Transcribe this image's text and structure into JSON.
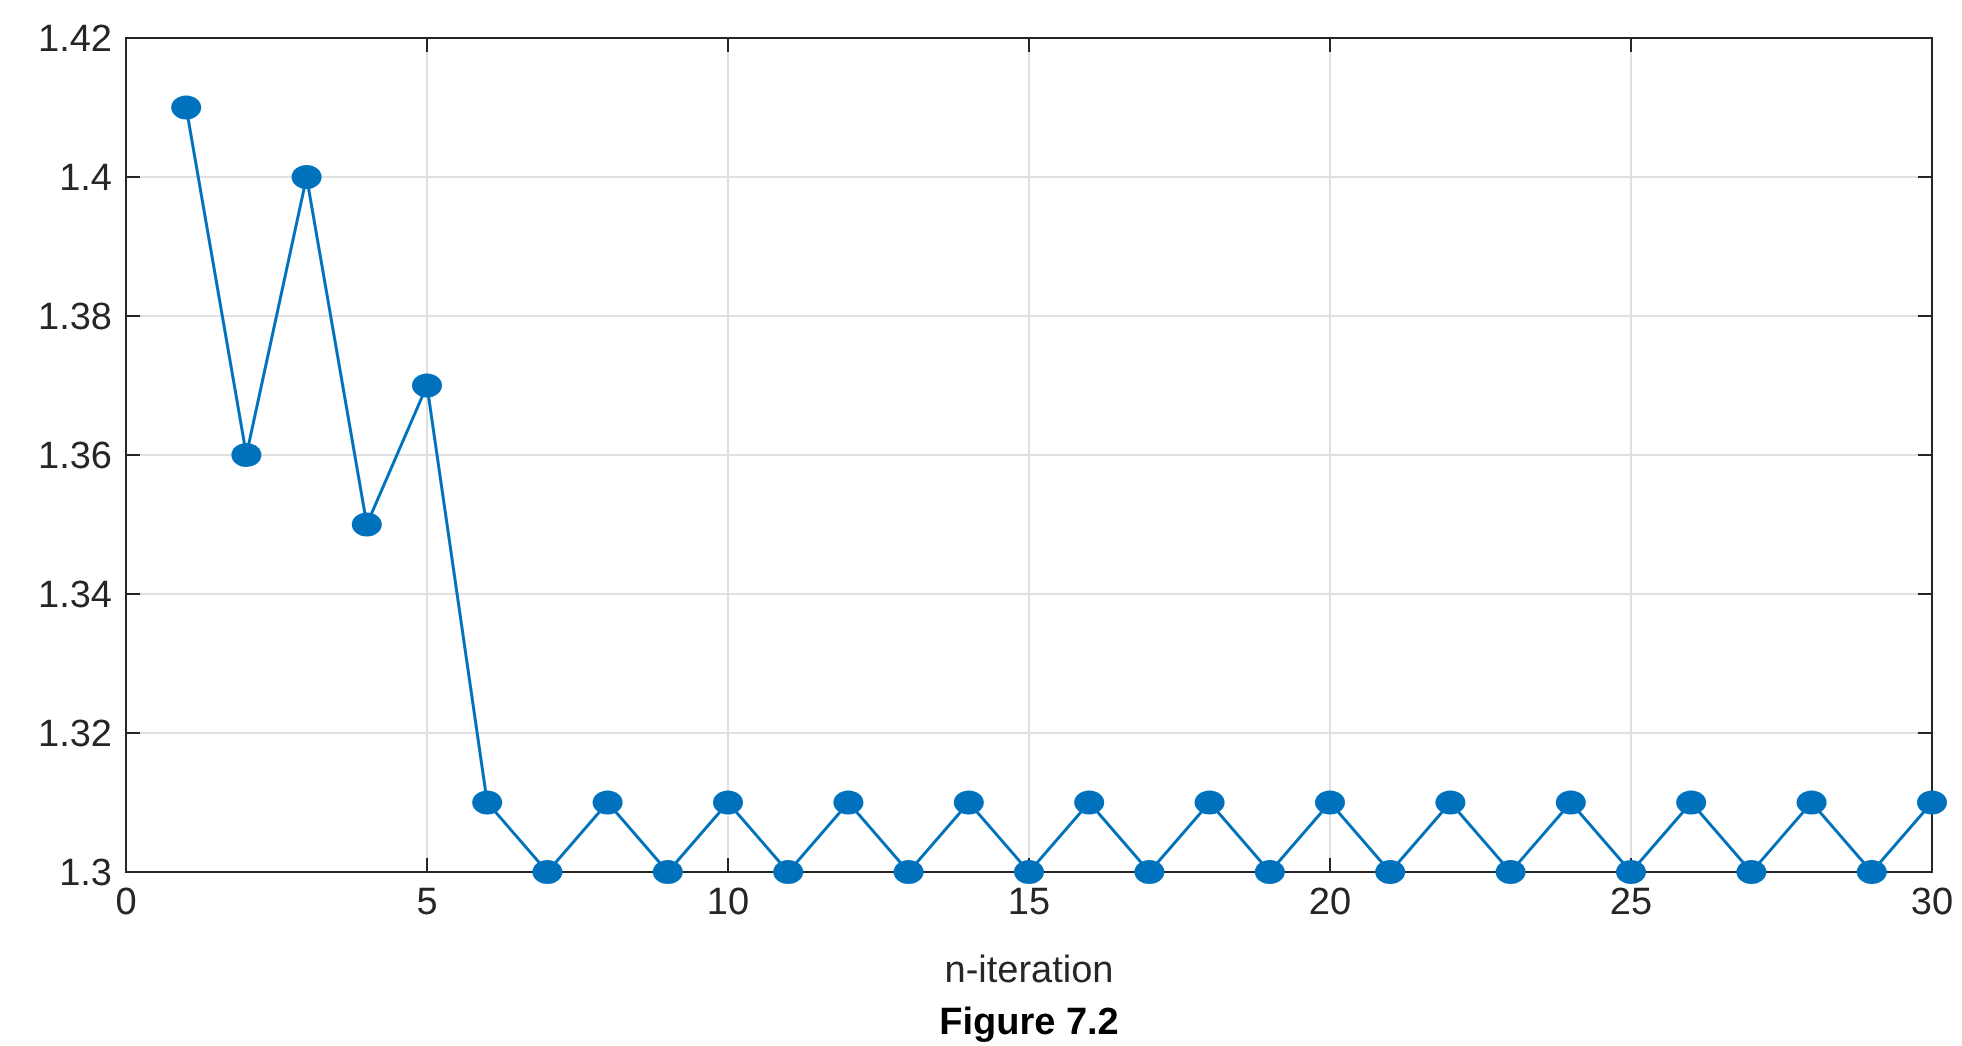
{
  "chart_data": {
    "type": "line",
    "title": "Figure 7.2",
    "xlabel": "n-iteration",
    "x": [
      1,
      2,
      3,
      4,
      5,
      6,
      7,
      8,
      9,
      10,
      11,
      12,
      13,
      14,
      15,
      16,
      17,
      18,
      19,
      20,
      21,
      22,
      23,
      24,
      25,
      26,
      27,
      28,
      29,
      30
    ],
    "series": [
      {
        "color": "#0072bd",
        "values": [
          1.41,
          1.36,
          1.4,
          1.35,
          1.37,
          1.31,
          1.3,
          1.31,
          1.3,
          1.31,
          1.3,
          1.31,
          1.3,
          1.31,
          1.3,
          1.31,
          1.3,
          1.31,
          1.3,
          1.31,
          1.3,
          1.31,
          1.3,
          1.31,
          1.3,
          1.31,
          1.3,
          1.31,
          1.3,
          1.31
        ]
      }
    ],
    "xlim": [
      0,
      30
    ],
    "xticks": [
      0,
      5,
      10,
      15,
      20,
      25,
      30
    ],
    "ylim": [
      1.3,
      1.42
    ],
    "yticks": [
      1.3,
      1.32,
      1.34,
      1.36,
      1.38,
      1.4,
      1.42
    ],
    "grid": true,
    "marker": "circle",
    "line_style": "solid"
  }
}
